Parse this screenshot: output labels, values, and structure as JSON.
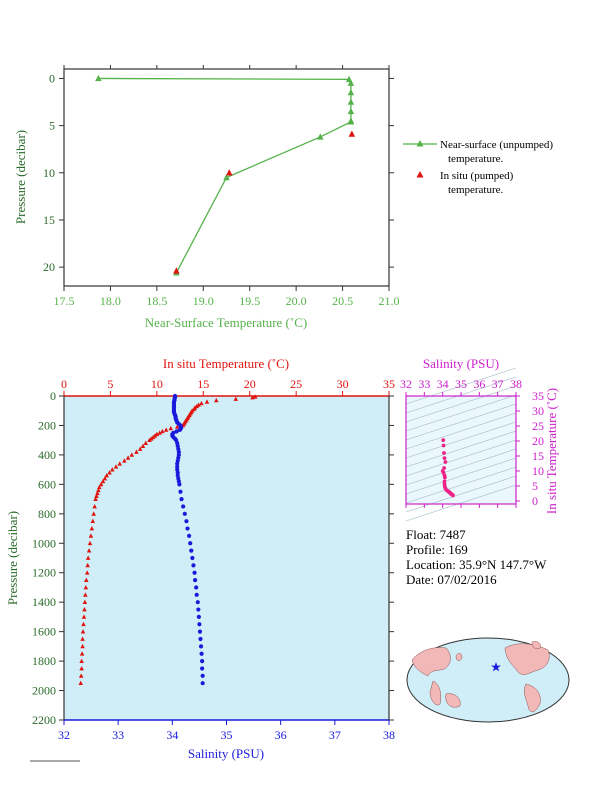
{
  "colors": {
    "green": "#55b24a",
    "red": "#e0140e",
    "blue": "#1a1adc",
    "magenta": "#cc22cc",
    "pink": "#ee2288",
    "panel_bg": "#cfeef8",
    "axis_dark": "#333333"
  },
  "top_chart": {
    "ylabel": "Pressure (decibar)",
    "xlabel": "Near-Surface Temperature (˚C)",
    "xticks": [
      "17.5",
      "18.0",
      "18.5",
      "19.0",
      "19.5",
      "20.0",
      "20.5",
      "21.0"
    ],
    "yticks": [
      "0",
      "5",
      "10",
      "15",
      "20"
    ],
    "legend": {
      "near_surface_l1": "Near-surface (unpumped)",
      "near_surface_l2": "temperature.",
      "in_situ_l1": "In situ (pumped)",
      "in_situ_l2": "temperature."
    }
  },
  "bottom_chart": {
    "top_xlabel": "In situ Temperature (˚C)",
    "bottom_xlabel": "Salinity (PSU)",
    "ylabel": "Pressure (decibar)",
    "temp_ticks": [
      "0",
      "5",
      "10",
      "15",
      "20",
      "25",
      "30",
      "35"
    ],
    "sal_ticks": [
      "32",
      "33",
      "34",
      "35",
      "36",
      "37",
      "38"
    ],
    "pres_ticks": [
      "0",
      "200",
      "400",
      "600",
      "800",
      "1000",
      "1200",
      "1400",
      "1600",
      "1800",
      "2000",
      "2200"
    ]
  },
  "ts_chart": {
    "xlabel": "Salinity (PSU)",
    "ylabel": "In situ Temperature (˚C)",
    "sal_ticks": [
      "32",
      "33",
      "34",
      "35",
      "36",
      "37",
      "38"
    ],
    "temp_ticks": [
      "0",
      "5",
      "10",
      "15",
      "20",
      "25",
      "30",
      "35"
    ]
  },
  "info": {
    "float": "Float:  7487",
    "profile": "Profile:  169",
    "location": "Location:  35.9°N  147.7°W",
    "date": "Date:  07/02/2016"
  },
  "chart_data": [
    {
      "type": "line",
      "name": "near-surface",
      "xlim": [
        17.5,
        21.0
      ],
      "ylim": [
        22,
        -1
      ],
      "series": [
        {
          "name": "Near-surface (unpumped) temperature.",
          "x": [
            17.87,
            20.57,
            20.59,
            20.59,
            20.59,
            20.59,
            20.59,
            20.59,
            20.26,
            19.25,
            18.71
          ],
          "y": [
            0,
            0.1,
            0.5,
            1.5,
            2.5,
            3.5,
            4.5,
            4.6,
            6.2,
            10.5,
            20.6
          ]
        },
        {
          "name": "In situ (pumped) temperature.",
          "x": [
            20.6,
            19.28,
            18.71
          ],
          "y": [
            5.9,
            10.0,
            20.4
          ]
        }
      ]
    },
    {
      "type": "scatter",
      "name": "profile",
      "temp_range": [
        0,
        35
      ],
      "sal_range": [
        32,
        38
      ],
      "ylim": [
        2200,
        0
      ],
      "series": [
        {
          "name": "In situ Temperature",
          "pressure": [
            5,
            10,
            20,
            30,
            40,
            50,
            60,
            70,
            80,
            90,
            100,
            110,
            120,
            130,
            140,
            150,
            160,
            170,
            180,
            190,
            200,
            210,
            220,
            230,
            240,
            250,
            260,
            270,
            280,
            290,
            300,
            320,
            340,
            360,
            380,
            400,
            420,
            440,
            460,
            480,
            500,
            520,
            540,
            560,
            580,
            600,
            620,
            640,
            660,
            680,
            700,
            750,
            800,
            850,
            900,
            950,
            1000,
            1050,
            1100,
            1150,
            1200,
            1250,
            1300,
            1350,
            1400,
            1450,
            1500,
            1550,
            1600,
            1650,
            1700,
            1750,
            1800,
            1850,
            1900,
            1950
          ],
          "temperature": [
            20.6,
            20.3,
            18.5,
            16.4,
            15.4,
            14.8,
            14.5,
            14.3,
            14.1,
            14.0,
            13.8,
            13.7,
            13.6,
            13.5,
            13.4,
            13.3,
            13.2,
            13.1,
            13.0,
            12.9,
            12.8,
            12.2,
            11.5,
            11.0,
            10.6,
            10.3,
            10.0,
            9.8,
            9.6,
            9.4,
            9.2,
            8.8,
            8.5,
            8.2,
            7.8,
            7.3,
            6.9,
            6.5,
            6.0,
            5.6,
            5.2,
            4.9,
            4.6,
            4.4,
            4.2,
            4.0,
            3.8,
            3.7,
            3.6,
            3.5,
            3.4,
            3.3,
            3.2,
            3.1,
            3.0,
            2.9,
            2.8,
            2.7,
            2.6,
            2.55,
            2.5,
            2.4,
            2.35,
            2.3,
            2.25,
            2.2,
            2.15,
            2.1,
            2.05,
            2.0,
            2.0,
            1.95,
            1.9,
            1.9,
            1.85,
            1.8
          ]
        },
        {
          "name": "Salinity",
          "pressure": [
            0,
            10,
            20,
            30,
            40,
            50,
            60,
            70,
            80,
            90,
            100,
            110,
            120,
            130,
            140,
            150,
            160,
            170,
            180,
            190,
            200,
            210,
            220,
            230,
            240,
            250,
            260,
            270,
            280,
            290,
            300,
            320,
            340,
            360,
            380,
            400,
            420,
            440,
            460,
            480,
            500,
            520,
            540,
            560,
            580,
            600,
            650,
            700,
            750,
            800,
            850,
            900,
            950,
            1000,
            1050,
            1100,
            1150,
            1200,
            1250,
            1300,
            1350,
            1400,
            1450,
            1500,
            1550,
            1600,
            1650,
            1700,
            1750,
            1800,
            1850,
            1900,
            1950
          ],
          "salinity": [
            34.05,
            34.05,
            34.04,
            34.04,
            34.03,
            34.03,
            34.03,
            34.03,
            34.03,
            34.03,
            34.03,
            34.03,
            34.04,
            34.05,
            34.06,
            34.06,
            34.07,
            34.08,
            34.09,
            34.12,
            34.15,
            34.16,
            34.16,
            34.14,
            34.08,
            34.02,
            34.0,
            34.0,
            34.02,
            34.05,
            34.07,
            34.09,
            34.1,
            34.11,
            34.12,
            34.12,
            34.11,
            34.1,
            34.09,
            34.09,
            34.09,
            34.1,
            34.1,
            34.11,
            34.12,
            34.13,
            34.15,
            34.17,
            34.2,
            34.23,
            34.26,
            34.28,
            34.31,
            34.33,
            34.35,
            34.37,
            34.39,
            34.41,
            34.42,
            34.44,
            34.45,
            34.47,
            34.48,
            34.49,
            34.5,
            34.51,
            34.52,
            34.53,
            34.54,
            34.55,
            34.55,
            34.56,
            34.56
          ]
        }
      ]
    },
    {
      "type": "scatter",
      "name": "t-s diagram",
      "xlim": [
        32,
        38
      ],
      "ylim": [
        -1,
        35
      ],
      "series": [
        {
          "name": "T-S",
          "salinity": [
            34.03,
            34.05,
            34.07,
            34.1,
            34.15,
            34.08,
            34.0,
            34.05,
            34.1,
            34.12,
            34.1,
            34.1,
            34.12,
            34.15,
            34.2,
            34.26,
            34.31,
            34.35,
            34.39,
            34.42,
            34.45,
            34.48,
            34.5,
            34.52,
            34.54,
            34.56
          ],
          "temperature": [
            20.3,
            18.5,
            16.0,
            14.3,
            13.0,
            11.0,
            10.0,
            9.4,
            8.5,
            7.8,
            6.5,
            5.6,
            4.8,
            4.2,
            3.7,
            3.4,
            3.2,
            3.0,
            2.8,
            2.6,
            2.45,
            2.3,
            2.2,
            2.1,
            2.0,
            1.85
          ]
        }
      ]
    }
  ]
}
